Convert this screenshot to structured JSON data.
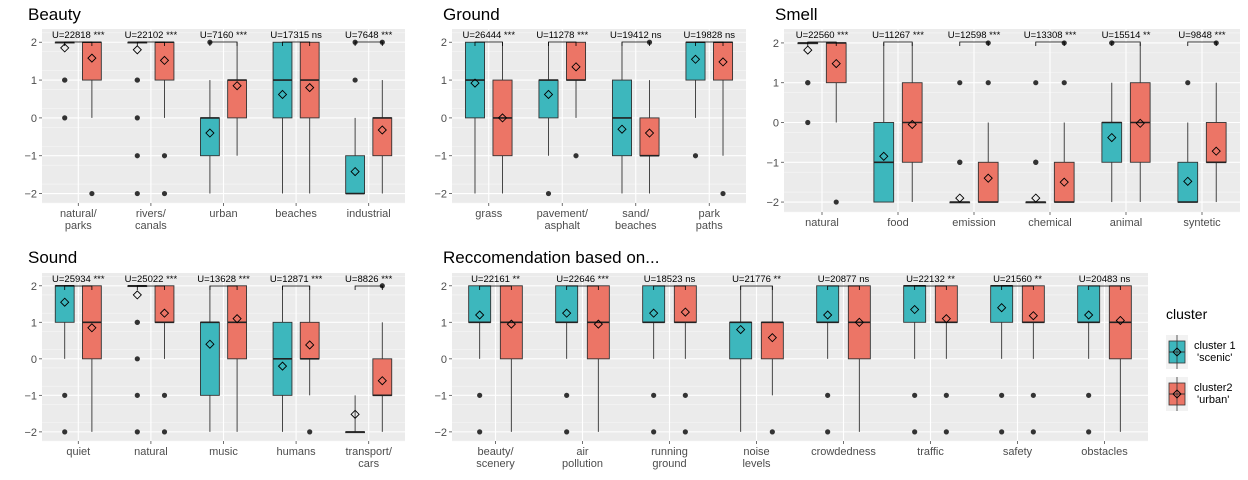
{
  "legend": {
    "title": "cluster",
    "items": [
      {
        "line1": "cluster 1",
        "line2": "'scenic'",
        "color": "#3DB7BD"
      },
      {
        "line1": "cluster2",
        "line2": "'urban'",
        "color": "#EC7566"
      }
    ]
  },
  "colors": {
    "c1": "#3DB7BD",
    "c2": "#EC7566",
    "panel_bg": "#EBEBEB"
  },
  "chart_data": [
    {
      "type": "box",
      "title": "Beauty",
      "ylim": [
        -2.25,
        2.35
      ],
      "yticks": [
        -2,
        -1,
        0,
        1,
        2
      ],
      "categories": [
        {
          "label": [
            "natural/",
            "parks"
          ],
          "annotation": "U=22818 ***",
          "c1": {
            "q1": 2,
            "median": 2,
            "q3": 2,
            "lo": 2,
            "hi": 2,
            "mean": 1.85,
            "outliers": [
              1,
              1,
              0
            ]
          },
          "c2": {
            "q1": 1,
            "median": 2,
            "q3": 2,
            "lo": 0,
            "hi": 2,
            "mean": 1.58,
            "outliers": [
              -2
            ]
          }
        },
        {
          "label": [
            "rivers/",
            "canals"
          ],
          "annotation": "U=22102 ***",
          "c1": {
            "q1": 2,
            "median": 2,
            "q3": 2,
            "lo": 2,
            "hi": 2,
            "mean": 1.8,
            "outliers": [
              1,
              1,
              0,
              -1,
              -2
            ]
          },
          "c2": {
            "q1": 1,
            "median": 2,
            "q3": 2,
            "lo": 0,
            "hi": 2,
            "mean": 1.52,
            "outliers": [
              -1,
              -2
            ]
          }
        },
        {
          "label": [
            "urban"
          ],
          "annotation": "U=7160 ***",
          "c1": {
            "q1": -1,
            "median": 0,
            "q3": 0,
            "lo": -2,
            "hi": 1,
            "mean": -0.4,
            "outliers": [
              2
            ]
          },
          "c2": {
            "q1": 0,
            "median": 1,
            "q3": 1,
            "lo": -1,
            "hi": 2,
            "mean": 0.85,
            "outliers": []
          }
        },
        {
          "label": [
            "beaches"
          ],
          "annotation": "U=17315 ns",
          "c1": {
            "q1": 0,
            "median": 1,
            "q3": 2,
            "lo": -2,
            "hi": 2,
            "mean": 0.62,
            "outliers": []
          },
          "c2": {
            "q1": 0,
            "median": 1,
            "q3": 2,
            "lo": -2,
            "hi": 2,
            "mean": 0.8,
            "outliers": []
          }
        },
        {
          "label": [
            "industrial"
          ],
          "annotation": "U=7648 ***",
          "c1": {
            "q1": -2,
            "median": -2,
            "q3": -1,
            "lo": -2,
            "hi": 0,
            "mean": -1.42,
            "outliers": [
              1,
              2
            ]
          },
          "c2": {
            "q1": -1,
            "median": 0,
            "q3": 0,
            "lo": -2,
            "hi": 1,
            "mean": -0.32,
            "outliers": [
              2
            ]
          }
        }
      ]
    },
    {
      "type": "box",
      "title": "Ground",
      "ylim": [
        -2.25,
        2.35
      ],
      "yticks": [
        -2,
        -1,
        0,
        1,
        2
      ],
      "categories": [
        {
          "label": [
            "grass"
          ],
          "annotation": "U=26444 ***",
          "c1": {
            "q1": 0,
            "median": 1,
            "q3": 2,
            "lo": -2,
            "hi": 2,
            "mean": 0.92,
            "outliers": []
          },
          "c2": {
            "q1": -1,
            "median": 0,
            "q3": 1,
            "lo": -2,
            "hi": 2,
            "mean": 0,
            "outliers": []
          }
        },
        {
          "label": [
            "pavement/",
            "asphalt"
          ],
          "annotation": "U=11278 ***",
          "c1": {
            "q1": 0,
            "median": 1,
            "q3": 1,
            "lo": -1,
            "hi": 2,
            "mean": 0.62,
            "outliers": [
              -2
            ]
          },
          "c2": {
            "q1": 1,
            "median": 1,
            "q3": 2,
            "lo": 0,
            "hi": 2,
            "mean": 1.35,
            "outliers": [
              -1
            ]
          }
        },
        {
          "label": [
            "sand/",
            "beaches"
          ],
          "annotation": "U=19412 ns",
          "c1": {
            "q1": -1,
            "median": 0,
            "q3": 1,
            "lo": -2,
            "hi": 2,
            "mean": -0.3,
            "outliers": []
          },
          "c2": {
            "q1": -1,
            "median": -1,
            "q3": 0,
            "lo": -2,
            "hi": 1,
            "mean": -0.4,
            "outliers": [
              2
            ]
          }
        },
        {
          "label": [
            "park",
            "paths"
          ],
          "annotation": "U=19828 ns",
          "c1": {
            "q1": 1,
            "median": 2,
            "q3": 2,
            "lo": 0,
            "hi": 2,
            "mean": 1.55,
            "outliers": [
              -1
            ]
          },
          "c2": {
            "q1": 1,
            "median": 2,
            "q3": 2,
            "lo": -1,
            "hi": 2,
            "mean": 1.48,
            "outliers": [
              -2
            ]
          }
        }
      ]
    },
    {
      "type": "box",
      "title": "Smell",
      "ylim": [
        -2.25,
        2.35
      ],
      "yticks": [
        -2,
        -1,
        0,
        1,
        2
      ],
      "categories": [
        {
          "label": [
            "natural"
          ],
          "annotation": "U=22560 ***",
          "c1": {
            "q1": 2,
            "median": 2,
            "q3": 2,
            "lo": 2,
            "hi": 2,
            "mean": 1.82,
            "outliers": [
              1,
              1,
              0
            ]
          },
          "c2": {
            "q1": 1,
            "median": 2,
            "q3": 2,
            "lo": 0,
            "hi": 2,
            "mean": 1.48,
            "outliers": [
              -2
            ]
          }
        },
        {
          "label": [
            "food"
          ],
          "annotation": "U=11267 ***",
          "c1": {
            "q1": -2,
            "median": -1,
            "q3": 0,
            "lo": -2,
            "hi": 2,
            "mean": -0.85,
            "outliers": []
          },
          "c2": {
            "q1": -1,
            "median": 0,
            "q3": 1,
            "lo": -2,
            "hi": 2,
            "mean": -0.05,
            "outliers": []
          }
        },
        {
          "label": [
            "emission"
          ],
          "annotation": "U=12598 ***",
          "c1": {
            "q1": -2,
            "median": -2,
            "q3": -2,
            "lo": -2,
            "hi": -2,
            "mean": -1.9,
            "outliers": [
              1,
              -1,
              -1
            ]
          },
          "c2": {
            "q1": -2,
            "median": -2,
            "q3": -1,
            "lo": -2,
            "hi": 0,
            "mean": -1.4,
            "outliers": [
              1,
              2
            ]
          }
        },
        {
          "label": [
            "chemical"
          ],
          "annotation": "U=13308 ***",
          "c1": {
            "q1": -2,
            "median": -2,
            "q3": -2,
            "lo": -2,
            "hi": -2,
            "mean": -1.9,
            "outliers": [
              1,
              -1,
              -1
            ]
          },
          "c2": {
            "q1": -2,
            "median": -2,
            "q3": -1,
            "lo": -2,
            "hi": 0,
            "mean": -1.5,
            "outliers": [
              1,
              2
            ]
          }
        },
        {
          "label": [
            "animal"
          ],
          "annotation": "U=15514 **",
          "c1": {
            "q1": -1,
            "median": 0,
            "q3": 0,
            "lo": -2,
            "hi": 1,
            "mean": -0.38,
            "outliers": [
              2,
              2
            ]
          },
          "c2": {
            "q1": -1,
            "median": 0,
            "q3": 1,
            "lo": -2,
            "hi": 2,
            "mean": -0.02,
            "outliers": []
          }
        },
        {
          "label": [
            "syntetic"
          ],
          "annotation": "U=9848 ***",
          "c1": {
            "q1": -2,
            "median": -2,
            "q3": -1,
            "lo": -2,
            "hi": 0,
            "mean": -1.48,
            "outliers": [
              1
            ]
          },
          "c2": {
            "q1": -1,
            "median": -1,
            "q3": 0,
            "lo": -2,
            "hi": 1,
            "mean": -0.72,
            "outliers": [
              2
            ]
          }
        }
      ]
    },
    {
      "type": "box",
      "title": "Sound",
      "ylim": [
        -2.25,
        2.35
      ],
      "yticks": [
        -2,
        -1,
        0,
        1,
        2
      ],
      "categories": [
        {
          "label": [
            "quiet"
          ],
          "annotation": "U=25934 ***",
          "c1": {
            "q1": 1,
            "median": 2,
            "q3": 2,
            "lo": 0,
            "hi": 2,
            "mean": 1.55,
            "outliers": [
              -1,
              -2
            ]
          },
          "c2": {
            "q1": 0,
            "median": 1,
            "q3": 2,
            "lo": -2,
            "hi": 2,
            "mean": 0.85,
            "outliers": []
          }
        },
        {
          "label": [
            "natural"
          ],
          "annotation": "U=25022 ***",
          "c1": {
            "q1": 2,
            "median": 2,
            "q3": 2,
            "lo": 2,
            "hi": 2,
            "mean": 1.75,
            "outliers": [
              1,
              1,
              0,
              -1,
              -2
            ]
          },
          "c2": {
            "q1": 1,
            "median": 1,
            "q3": 2,
            "lo": 0,
            "hi": 2,
            "mean": 1.25,
            "outliers": [
              -1,
              -2
            ]
          }
        },
        {
          "label": [
            "music"
          ],
          "annotation": "U=13628 ***",
          "c1": {
            "q1": -1,
            "median": 1,
            "q3": 1,
            "lo": -2,
            "hi": 2,
            "mean": 0.4,
            "outliers": []
          },
          "c2": {
            "q1": 0,
            "median": 1,
            "q3": 2,
            "lo": -2,
            "hi": 2,
            "mean": 1.1,
            "outliers": []
          }
        },
        {
          "label": [
            "humans"
          ],
          "annotation": "U=12871 ***",
          "c1": {
            "q1": -1,
            "median": 0,
            "q3": 1,
            "lo": -2,
            "hi": 2,
            "mean": -0.2,
            "outliers": []
          },
          "c2": {
            "q1": 0,
            "median": 0,
            "q3": 1,
            "lo": -1,
            "hi": 2,
            "mean": 0.38,
            "outliers": [
              -2
            ]
          }
        },
        {
          "label": [
            "transport/",
            "cars"
          ],
          "annotation": "U=8826 ***",
          "c1": {
            "q1": -2,
            "median": -2,
            "q3": -2,
            "lo": -2,
            "hi": -1,
            "mean": -1.52,
            "outliers": []
          },
          "c2": {
            "q1": -1,
            "median": -1,
            "q3": 0,
            "lo": -2,
            "hi": 1,
            "mean": -0.6,
            "outliers": [
              2
            ]
          }
        }
      ]
    },
    {
      "type": "box",
      "title": "Reccomendation based on...",
      "ylim": [
        -2.25,
        2.35
      ],
      "yticks": [
        -2,
        -1,
        0,
        1,
        2
      ],
      "categories": [
        {
          "label": [
            "beauty/",
            "scenery"
          ],
          "annotation": "U=22161 **",
          "c1": {
            "q1": 1,
            "median": 1,
            "q3": 2,
            "lo": 0,
            "hi": 2,
            "mean": 1.2,
            "outliers": [
              -1,
              -2
            ]
          },
          "c2": {
            "q1": 0,
            "median": 1,
            "q3": 2,
            "lo": -2,
            "hi": 2,
            "mean": 0.95,
            "outliers": []
          }
        },
        {
          "label": [
            "air",
            "pollution"
          ],
          "annotation": "U=22646 ***",
          "c1": {
            "q1": 1,
            "median": 1,
            "q3": 2,
            "lo": 0,
            "hi": 2,
            "mean": 1.25,
            "outliers": [
              -1,
              -2
            ]
          },
          "c2": {
            "q1": 0,
            "median": 1,
            "q3": 2,
            "lo": -2,
            "hi": 2,
            "mean": 0.95,
            "outliers": []
          }
        },
        {
          "label": [
            "running",
            "ground"
          ],
          "annotation": "U=18523 ns",
          "c1": {
            "q1": 1,
            "median": 1,
            "q3": 2,
            "lo": 0,
            "hi": 2,
            "mean": 1.25,
            "outliers": [
              -1,
              -2
            ]
          },
          "c2": {
            "q1": 1,
            "median": 1,
            "q3": 2,
            "lo": 0,
            "hi": 2,
            "mean": 1.28,
            "outliers": [
              -1,
              -2
            ]
          }
        },
        {
          "label": [
            "noise",
            "levels"
          ],
          "annotation": "U=21776 **",
          "c1": {
            "q1": 0,
            "median": 1,
            "q3": 1,
            "lo": -2,
            "hi": 2,
            "mean": 0.8,
            "outliers": []
          },
          "c2": {
            "q1": 0,
            "median": 1,
            "q3": 1,
            "lo": -1,
            "hi": 2,
            "mean": 0.58,
            "outliers": [
              -2
            ]
          }
        },
        {
          "label": [
            "crowdedness"
          ],
          "annotation": "U=20877 ns",
          "c1": {
            "q1": 1,
            "median": 1,
            "q3": 2,
            "lo": 0,
            "hi": 2,
            "mean": 1.2,
            "outliers": [
              -1,
              -2
            ]
          },
          "c2": {
            "q1": 0,
            "median": 1,
            "q3": 2,
            "lo": -2,
            "hi": 2,
            "mean": 1.0,
            "outliers": []
          }
        },
        {
          "label": [
            "traffic"
          ],
          "annotation": "U=22132 **",
          "c1": {
            "q1": 1,
            "median": 2,
            "q3": 2,
            "lo": 0,
            "hi": 2,
            "mean": 1.35,
            "outliers": [
              -1,
              -2
            ]
          },
          "c2": {
            "q1": 1,
            "median": 1,
            "q3": 2,
            "lo": 0,
            "hi": 2,
            "mean": 1.1,
            "outliers": [
              -1,
              -2
            ]
          }
        },
        {
          "label": [
            "safety"
          ],
          "annotation": "U=21560 **",
          "c1": {
            "q1": 1,
            "median": 2,
            "q3": 2,
            "lo": 0,
            "hi": 2,
            "mean": 1.4,
            "outliers": [
              -1,
              -2
            ]
          },
          "c2": {
            "q1": 1,
            "median": 1,
            "q3": 2,
            "lo": 0,
            "hi": 2,
            "mean": 1.18,
            "outliers": [
              -1,
              -2
            ]
          }
        },
        {
          "label": [
            "obstacles"
          ],
          "annotation": "U=20483 ns",
          "c1": {
            "q1": 1,
            "median": 1,
            "q3": 2,
            "lo": 0,
            "hi": 2,
            "mean": 1.2,
            "outliers": [
              -1,
              -2
            ]
          },
          "c2": {
            "q1": 0,
            "median": 1,
            "q3": 2,
            "lo": -2,
            "hi": 2,
            "mean": 1.05,
            "outliers": []
          }
        }
      ]
    }
  ]
}
